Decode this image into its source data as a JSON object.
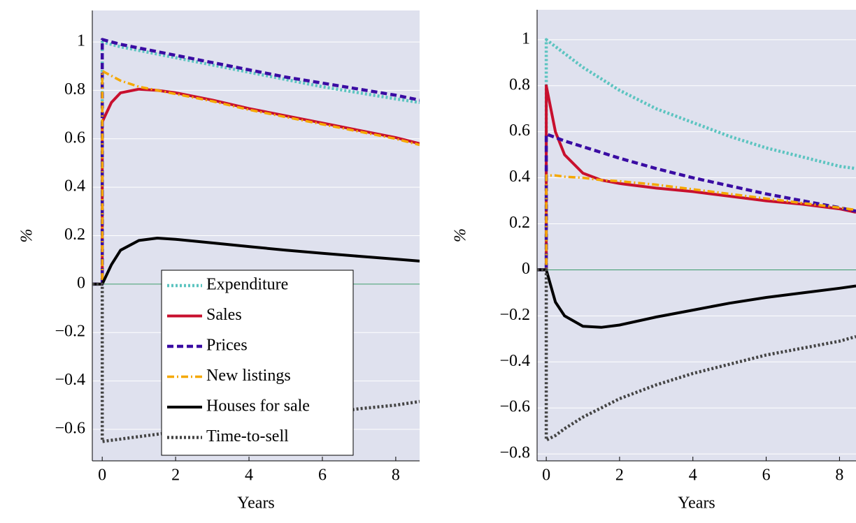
{
  "chart_data": [
    {
      "type": "line",
      "x_label": "Years",
      "y_label": "%",
      "x": [
        -0.27,
        0,
        0,
        0.25,
        0.5,
        1,
        1.5,
        2,
        3,
        4,
        5,
        6,
        7,
        8,
        8.65
      ],
      "xlim": [
        -0.27,
        8.65
      ],
      "xticks": [
        0,
        2,
        4,
        6,
        8
      ],
      "ylim": [
        -0.73,
        1.13
      ],
      "yticks": [
        {
          "value": -0.6,
          "label": "−0.6"
        },
        {
          "value": -0.4,
          "label": "−0.4"
        },
        {
          "value": -0.2,
          "label": "−0.2"
        },
        0,
        0.2,
        0.4,
        0.6,
        0.8,
        1
      ],
      "grid": true,
      "zero_line_color": "#3a9a6a",
      "legend": "lower center",
      "series": [
        {
          "name": "Expenditure",
          "color": "#5cc4c0",
          "dash": "dotted",
          "values": [
            0,
            0,
            1.0,
            0.99,
            0.98,
            0.965,
            0.95,
            0.935,
            0.905,
            0.875,
            0.845,
            0.815,
            0.79,
            0.765,
            0.75
          ]
        },
        {
          "name": "Sales",
          "color": "#c8102e",
          "dash": "solid",
          "values": [
            0,
            0,
            0.67,
            0.75,
            0.79,
            0.805,
            0.8,
            0.79,
            0.76,
            0.725,
            0.695,
            0.665,
            0.635,
            0.605,
            0.58
          ]
        },
        {
          "name": "Prices",
          "color": "#3a0ca3",
          "dash": "dashed",
          "values": [
            0,
            0,
            1.01,
            1.0,
            0.99,
            0.975,
            0.96,
            0.945,
            0.915,
            0.885,
            0.855,
            0.83,
            0.805,
            0.78,
            0.76
          ]
        },
        {
          "name": "New listings",
          "color": "#f5a800",
          "dash": "dashdot",
          "values": [
            0,
            0,
            0.88,
            0.86,
            0.84,
            0.815,
            0.8,
            0.785,
            0.755,
            0.72,
            0.69,
            0.66,
            0.63,
            0.6,
            0.575
          ]
        },
        {
          "name": "Houses for sale",
          "color": "#000000",
          "dash": "solid",
          "values": [
            0,
            0,
            0,
            0.08,
            0.14,
            0.18,
            0.19,
            0.185,
            0.17,
            0.155,
            0.14,
            0.127,
            0.115,
            0.103,
            0.095
          ]
        },
        {
          "name": "Time-to-sell",
          "color": "#444444",
          "dash": "dotted",
          "values": [
            0,
            0,
            -0.65,
            -0.645,
            -0.64,
            -0.63,
            -0.62,
            -0.61,
            -0.59,
            -0.57,
            -0.55,
            -0.535,
            -0.515,
            -0.5,
            -0.485
          ]
        }
      ]
    },
    {
      "type": "line",
      "x_label": "Years",
      "y_label": "%",
      "x": [
        -0.25,
        0,
        0,
        0.25,
        0.5,
        1,
        1.5,
        2,
        3,
        4,
        5,
        6,
        7,
        8,
        8.45
      ],
      "xlim": [
        -0.25,
        8.45
      ],
      "xticks": [
        0,
        2,
        4,
        6,
        8
      ],
      "ylim": [
        -0.83,
        1.13
      ],
      "yticks": [
        {
          "value": -0.8,
          "label": "−0.8"
        },
        {
          "value": -0.6,
          "label": "−0.6"
        },
        {
          "value": -0.4,
          "label": "−0.4"
        },
        {
          "value": -0.2,
          "label": "−0.2"
        },
        0,
        0.2,
        0.4,
        0.6,
        0.8,
        1
      ],
      "grid": true,
      "zero_line_color": "#3a9a6a",
      "series": [
        {
          "name": "Expenditure",
          "color": "#5cc4c0",
          "dash": "dotted",
          "values": [
            0,
            0,
            1.0,
            0.97,
            0.94,
            0.88,
            0.83,
            0.78,
            0.7,
            0.64,
            0.58,
            0.53,
            0.49,
            0.45,
            0.44
          ]
        },
        {
          "name": "Sales",
          "color": "#c8102e",
          "dash": "solid",
          "values": [
            0,
            0,
            0.8,
            0.6,
            0.5,
            0.42,
            0.39,
            0.375,
            0.355,
            0.34,
            0.32,
            0.3,
            0.285,
            0.265,
            0.25
          ]
        },
        {
          "name": "Prices",
          "color": "#3a0ca3",
          "dash": "dashed",
          "values": [
            0,
            0,
            0.59,
            0.575,
            0.56,
            0.535,
            0.51,
            0.485,
            0.44,
            0.4,
            0.365,
            0.33,
            0.3,
            0.27,
            0.255
          ]
        },
        {
          "name": "New listings",
          "color": "#f5a800",
          "dash": "dashdot",
          "values": [
            0,
            0,
            0.41,
            0.41,
            0.405,
            0.4,
            0.39,
            0.385,
            0.37,
            0.35,
            0.33,
            0.31,
            0.29,
            0.27,
            0.26
          ]
        },
        {
          "name": "Houses for sale",
          "color": "#000000",
          "dash": "solid",
          "values": [
            0,
            0,
            0,
            -0.14,
            -0.2,
            -0.245,
            -0.25,
            -0.24,
            -0.205,
            -0.175,
            -0.145,
            -0.12,
            -0.1,
            -0.08,
            -0.07
          ]
        },
        {
          "name": "Time-to-sell",
          "color": "#444444",
          "dash": "dotted",
          "values": [
            0,
            0,
            -0.74,
            -0.72,
            -0.69,
            -0.64,
            -0.6,
            -0.56,
            -0.5,
            -0.45,
            -0.41,
            -0.37,
            -0.34,
            -0.31,
            -0.29
          ]
        }
      ]
    }
  ]
}
